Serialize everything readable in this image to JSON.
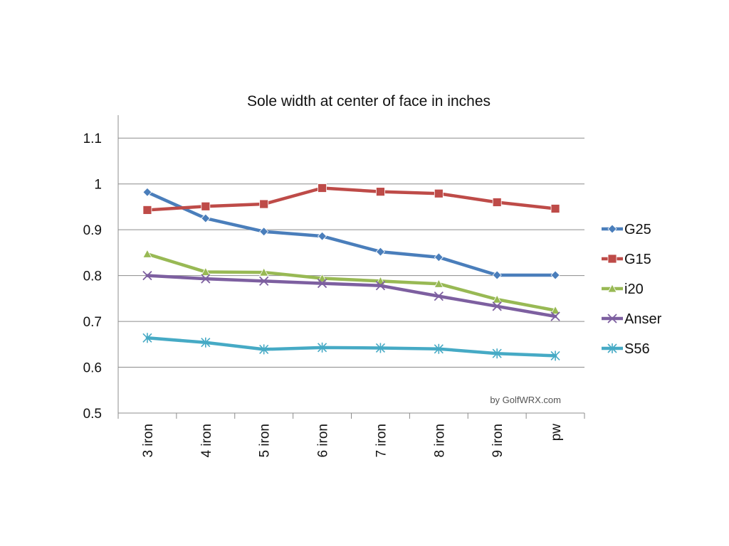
{
  "chart_data": {
    "type": "line",
    "title": "Sole width at center of face in inches",
    "categories": [
      "3 iron",
      "4 iron",
      "5 iron",
      "6 iron",
      "7 iron",
      "8 iron",
      "9 iron",
      "pw"
    ],
    "ylim": [
      0.5,
      1.15
    ],
    "yticks": [
      "0.5",
      "0.6",
      "0.7",
      "0.8",
      "0.9",
      "1",
      "1.1"
    ],
    "grid": true,
    "legend_position": "right",
    "series": [
      {
        "name": "G25",
        "color": "#4a7ebb",
        "marker": "diamond",
        "values": [
          0.982,
          0.925,
          0.896,
          0.886,
          0.852,
          0.84,
          0.801,
          0.801
        ]
      },
      {
        "name": "G15",
        "color": "#be4b48",
        "marker": "square",
        "values": [
          0.943,
          0.951,
          0.956,
          0.991,
          0.983,
          0.979,
          0.96,
          0.946
        ]
      },
      {
        "name": "i20",
        "color": "#98b954",
        "marker": "triangle",
        "values": [
          0.847,
          0.808,
          0.807,
          0.794,
          0.788,
          0.782,
          0.748,
          0.724
        ]
      },
      {
        "name": "Anser",
        "color": "#7d5fa0",
        "marker": "x",
        "values": [
          0.8,
          0.793,
          0.788,
          0.783,
          0.778,
          0.755,
          0.733,
          0.711
        ]
      },
      {
        "name": "S56",
        "color": "#46aac5",
        "marker": "star",
        "values": [
          0.664,
          0.654,
          0.639,
          0.643,
          0.642,
          0.64,
          0.63,
          0.625
        ]
      }
    ],
    "annotation": "by GolfWRX.com"
  }
}
